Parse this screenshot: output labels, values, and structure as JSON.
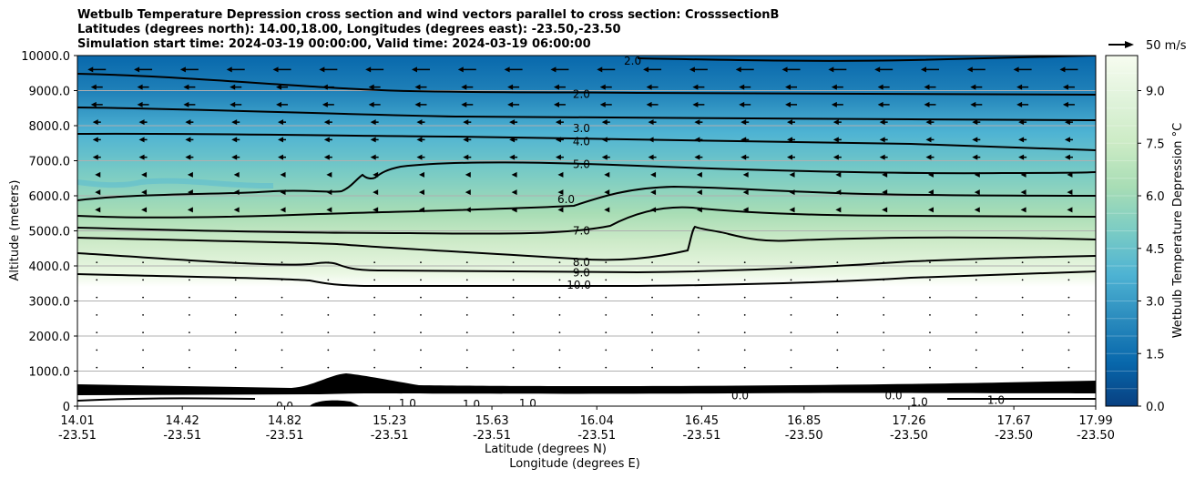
{
  "chart_data": {
    "type": "contour",
    "title_lines": [
      "Wetbulb Temperature Depression cross section and wind vectors parallel to cross section: CrosssectionB",
      "Latitudes (degrees north): 14.00,18.00, Longitudes (degrees east): -23.50,-23.50",
      "Simulation start time: 2024-03-19 00:00:00, Valid time: 2024-03-19 06:00:00"
    ],
    "ylabel": "Altitude (meters)",
    "xlabel_lat": "Latitude (degrees N)",
    "xlabel_lon": "Longitude (degrees E)",
    "ylim": [
      0,
      10000
    ],
    "yticks": [
      "0",
      "1000.0",
      "2000.0",
      "3000.0",
      "4000.0",
      "5000.0",
      "6000.0",
      "7000.0",
      "8000.0",
      "9000.0",
      "10000.0"
    ],
    "ytick_values": [
      0,
      1000,
      2000,
      3000,
      4000,
      5000,
      6000,
      7000,
      8000,
      9000,
      10000
    ],
    "xticks_lat": [
      "14.01",
      "14.42",
      "14.82",
      "15.23",
      "15.63",
      "16.04",
      "16.45",
      "16.85",
      "17.26",
      "17.67",
      "17.99"
    ],
    "xticks_lon": [
      "-23.51",
      "-23.51",
      "-23.51",
      "-23.51",
      "-23.51",
      "-23.51",
      "-23.51",
      "-23.50",
      "-23.50",
      "-23.50",
      "-23.50"
    ],
    "xtick_values": [
      14.01,
      14.42,
      14.82,
      15.23,
      15.63,
      16.04,
      16.45,
      16.85,
      17.26,
      17.67,
      17.99
    ],
    "xlim": [
      14.01,
      17.99
    ],
    "grid": "horizontal",
    "colorbar": {
      "label": "Wetbulb Temperature Depression °C",
      "ticks": [
        "0.0",
        "1.5",
        "3.0",
        "4.5",
        "6.0",
        "7.5",
        "9.0"
      ],
      "tick_values": [
        0,
        1.5,
        3,
        4.5,
        6,
        7.5,
        9
      ],
      "range": [
        0,
        10
      ],
      "colormap": "GnBu_r",
      "colors": [
        "#084081",
        "#0868ac",
        "#2b8cbe",
        "#4eb3d3",
        "#7bccc4",
        "#a8ddb5",
        "#ccebc5",
        "#e0f3db",
        "#f7fcf0"
      ]
    },
    "quiver_key": "50 m/s",
    "contour_labels": [
      {
        "text": "2.0",
        "lat": 15.98,
        "alt": 8900
      },
      {
        "text": "3.0",
        "lat": 15.98,
        "alt": 7920
      },
      {
        "text": "4.0",
        "lat": 15.98,
        "alt": 7550
      },
      {
        "text": "5.0",
        "lat": 15.98,
        "alt": 6900
      },
      {
        "text": "6.0",
        "lat": 15.92,
        "alt": 5900
      },
      {
        "text": "7.0",
        "lat": 15.98,
        "alt": 5000
      },
      {
        "text": "8.0",
        "lat": 15.98,
        "alt": 4100
      },
      {
        "text": "9.0",
        "lat": 15.98,
        "alt": 3800
      },
      {
        "text": "10.0",
        "lat": 15.97,
        "alt": 3450
      },
      {
        "text": "2.0",
        "lat": 16.18,
        "alt": 9850
      },
      {
        "text": "1.0",
        "lat": 15.55,
        "alt": 50
      },
      {
        "text": "1.0",
        "lat": 15.77,
        "alt": 80
      },
      {
        "text": "1.0",
        "lat": 15.3,
        "alt": 80
      },
      {
        "text": "0.0",
        "lat": 14.82,
        "alt": 0
      },
      {
        "text": "0.0",
        "lat": 16.6,
        "alt": 300
      },
      {
        "text": "0.0",
        "lat": 17.2,
        "alt": 300
      },
      {
        "text": "1.0",
        "lat": 17.3,
        "alt": 120
      },
      {
        "text": "1.0",
        "lat": 17.6,
        "alt": 170
      }
    ]
  }
}
